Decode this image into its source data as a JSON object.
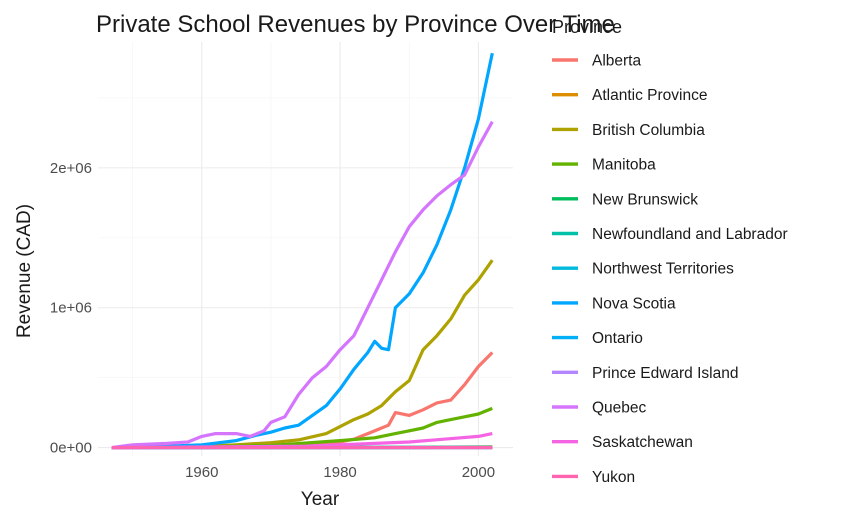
{
  "chart_data": {
    "type": "line",
    "title": "Private School Revenues by Province Over Time",
    "xlabel": "Year",
    "ylabel": "Revenue (CAD)",
    "xlim": [
      1945,
      2005
    ],
    "ylim": [
      -60000,
      2900000
    ],
    "x_ticks": [
      1960,
      1980,
      2000
    ],
    "x_tick_labels": [
      "1960",
      "1980",
      "2000"
    ],
    "y_ticks": [
      0,
      1000000,
      2000000
    ],
    "y_tick_labels": [
      "0e+00",
      "1e+06",
      "2e+06"
    ],
    "grid": true,
    "legend": {
      "title": "Province",
      "position": "right"
    },
    "series": [
      {
        "name": "Alberta",
        "color": "#F8766D",
        "points": [
          [
            1947,
            0
          ],
          [
            1960,
            3000
          ],
          [
            1970,
            10000
          ],
          [
            1975,
            20000
          ],
          [
            1980,
            40000
          ],
          [
            1982,
            60000
          ],
          [
            1984,
            100000
          ],
          [
            1986,
            140000
          ],
          [
            1987,
            160000
          ],
          [
            1988,
            250000
          ],
          [
            1990,
            230000
          ],
          [
            1992,
            270000
          ],
          [
            1994,
            320000
          ],
          [
            1996,
            340000
          ],
          [
            1998,
            450000
          ],
          [
            2000,
            580000
          ],
          [
            2002,
            680000
          ]
        ]
      },
      {
        "name": "Atlantic Province",
        "color": "#DB8E00",
        "points": [
          [
            1947,
            0
          ],
          [
            1990,
            2000
          ],
          [
            2002,
            5000
          ]
        ]
      },
      {
        "name": "British Columbia",
        "color": "#AEA200",
        "points": [
          [
            1947,
            0
          ],
          [
            1955,
            5000
          ],
          [
            1960,
            10000
          ],
          [
            1965,
            20000
          ],
          [
            1970,
            35000
          ],
          [
            1974,
            55000
          ],
          [
            1978,
            100000
          ],
          [
            1980,
            150000
          ],
          [
            1982,
            200000
          ],
          [
            1984,
            240000
          ],
          [
            1986,
            300000
          ],
          [
            1988,
            400000
          ],
          [
            1990,
            480000
          ],
          [
            1992,
            700000
          ],
          [
            1994,
            800000
          ],
          [
            1996,
            920000
          ],
          [
            1998,
            1090000
          ],
          [
            2000,
            1200000
          ],
          [
            2002,
            1340000
          ]
        ]
      },
      {
        "name": "Manitoba",
        "color": "#64B200",
        "points": [
          [
            1947,
            0
          ],
          [
            1960,
            5000
          ],
          [
            1970,
            15000
          ],
          [
            1980,
            50000
          ],
          [
            1985,
            70000
          ],
          [
            1988,
            100000
          ],
          [
            1990,
            120000
          ],
          [
            1992,
            140000
          ],
          [
            1994,
            180000
          ],
          [
            1996,
            200000
          ],
          [
            1998,
            220000
          ],
          [
            2000,
            240000
          ],
          [
            2002,
            280000
          ]
        ]
      },
      {
        "name": "New Brunswick",
        "color": "#00BD5C",
        "points": [
          [
            1947,
            0
          ],
          [
            1990,
            1000
          ],
          [
            2002,
            3000
          ]
        ]
      },
      {
        "name": "Newfoundland and Labrador",
        "color": "#00C1A7",
        "points": [
          [
            1947,
            0
          ],
          [
            2002,
            2000
          ]
        ]
      },
      {
        "name": "Northwest Territories",
        "color": "#00BADE",
        "points": [
          [
            1947,
            0
          ],
          [
            2002,
            1000
          ]
        ]
      },
      {
        "name": "Nova Scotia",
        "color": "#00A6FF",
        "points": [
          [
            1947,
            0
          ],
          [
            1955,
            10000
          ],
          [
            1960,
            20000
          ],
          [
            1965,
            50000
          ],
          [
            1968,
            90000
          ],
          [
            1970,
            110000
          ],
          [
            1972,
            140000
          ],
          [
            1974,
            160000
          ],
          [
            1976,
            230000
          ],
          [
            1978,
            300000
          ],
          [
            1980,
            420000
          ],
          [
            1982,
            560000
          ],
          [
            1984,
            680000
          ],
          [
            1985,
            760000
          ],
          [
            1986,
            710000
          ],
          [
            1987,
            700000
          ],
          [
            1988,
            1000000
          ],
          [
            1990,
            1100000
          ],
          [
            1992,
            1250000
          ],
          [
            1994,
            1450000
          ],
          [
            1996,
            1700000
          ],
          [
            1998,
            2000000
          ],
          [
            2000,
            2350000
          ],
          [
            2002,
            2820000
          ]
        ]
      },
      {
        "name": "Ontario",
        "color": "#00B0F6",
        "points": [
          [
            1947,
            0
          ],
          [
            2002,
            0
          ]
        ]
      },
      {
        "name": "Prince Edward Island",
        "color": "#B385FF",
        "points": [
          [
            1947,
            0
          ],
          [
            2002,
            1000
          ]
        ]
      },
      {
        "name": "Quebec",
        "color": "#D575FE",
        "points": [
          [
            1947,
            0
          ],
          [
            1950,
            20000
          ],
          [
            1955,
            30000
          ],
          [
            1958,
            40000
          ],
          [
            1960,
            80000
          ],
          [
            1962,
            100000
          ],
          [
            1965,
            100000
          ],
          [
            1967,
            80000
          ],
          [
            1969,
            120000
          ],
          [
            1970,
            180000
          ],
          [
            1972,
            220000
          ],
          [
            1974,
            380000
          ],
          [
            1976,
            500000
          ],
          [
            1978,
            580000
          ],
          [
            1980,
            700000
          ],
          [
            1982,
            800000
          ],
          [
            1984,
            1000000
          ],
          [
            1986,
            1200000
          ],
          [
            1988,
            1400000
          ],
          [
            1990,
            1580000
          ],
          [
            1992,
            1700000
          ],
          [
            1994,
            1800000
          ],
          [
            1996,
            1880000
          ],
          [
            1998,
            1950000
          ],
          [
            2000,
            2150000
          ],
          [
            2002,
            2330000
          ]
        ]
      },
      {
        "name": "Saskatchewan",
        "color": "#F564E3",
        "points": [
          [
            1947,
            0
          ],
          [
            1975,
            10000
          ],
          [
            1980,
            20000
          ],
          [
            1985,
            30000
          ],
          [
            1990,
            40000
          ],
          [
            1995,
            60000
          ],
          [
            2000,
            80000
          ],
          [
            2002,
            100000
          ]
        ]
      },
      {
        "name": "Yukon",
        "color": "#FF64B0",
        "points": [
          [
            1947,
            0
          ],
          [
            2002,
            0
          ]
        ]
      }
    ]
  }
}
